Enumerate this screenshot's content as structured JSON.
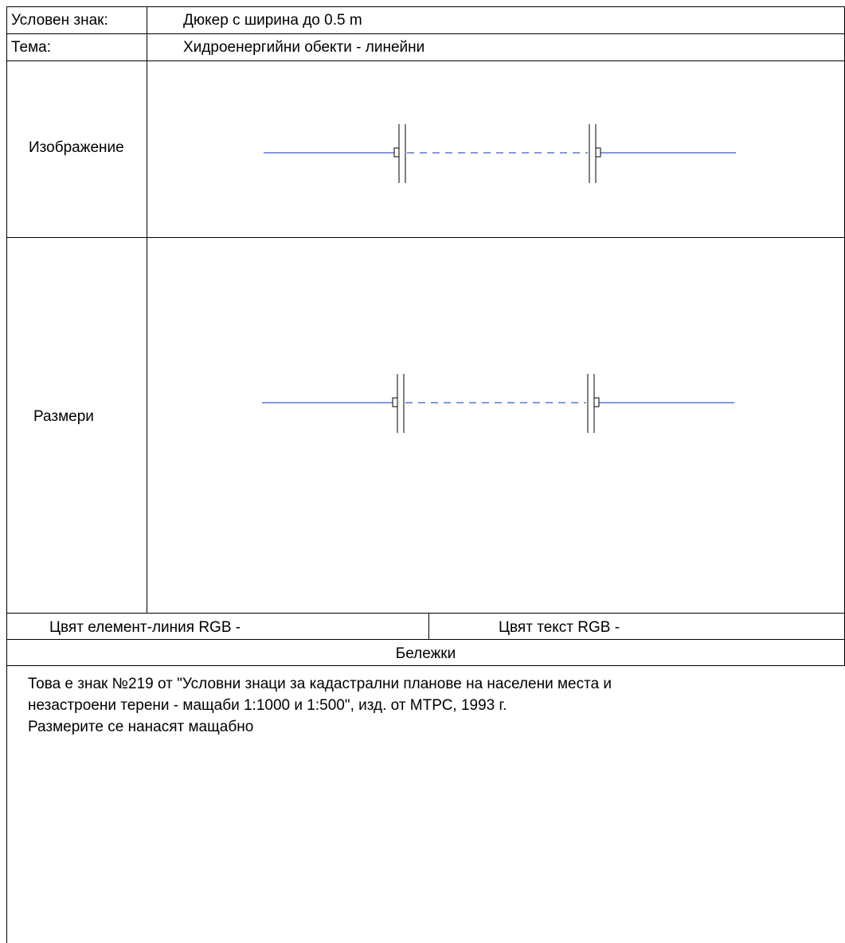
{
  "header": {
    "sign_label": "Условен знак:",
    "sign_value": "Дюкер с ширина до 0.5 m",
    "theme_label": "Тема:",
    "theme_value": "Хидроенергийни обекти - линейни"
  },
  "sections": {
    "image_label": "Изображение",
    "dimensions_label": "Размери"
  },
  "colors_row": {
    "line_color_label": "Цвят елемент-линия RGB -",
    "text_color_label": "Цвят текст RGB -"
  },
  "notes": {
    "heading": "Бележки",
    "line1": "Това е знак №219 от \"Условни знаци за кадастрални планове на населени места и",
    "line2": "незастроени терени - мащаби 1:1000 и 1:500\", изд. от МТРС, 1993 г.",
    "line3": "Размерите се нанасят мащабно"
  },
  "symbol": {
    "line_color": "#0033cc",
    "outline_color": "#000000"
  }
}
